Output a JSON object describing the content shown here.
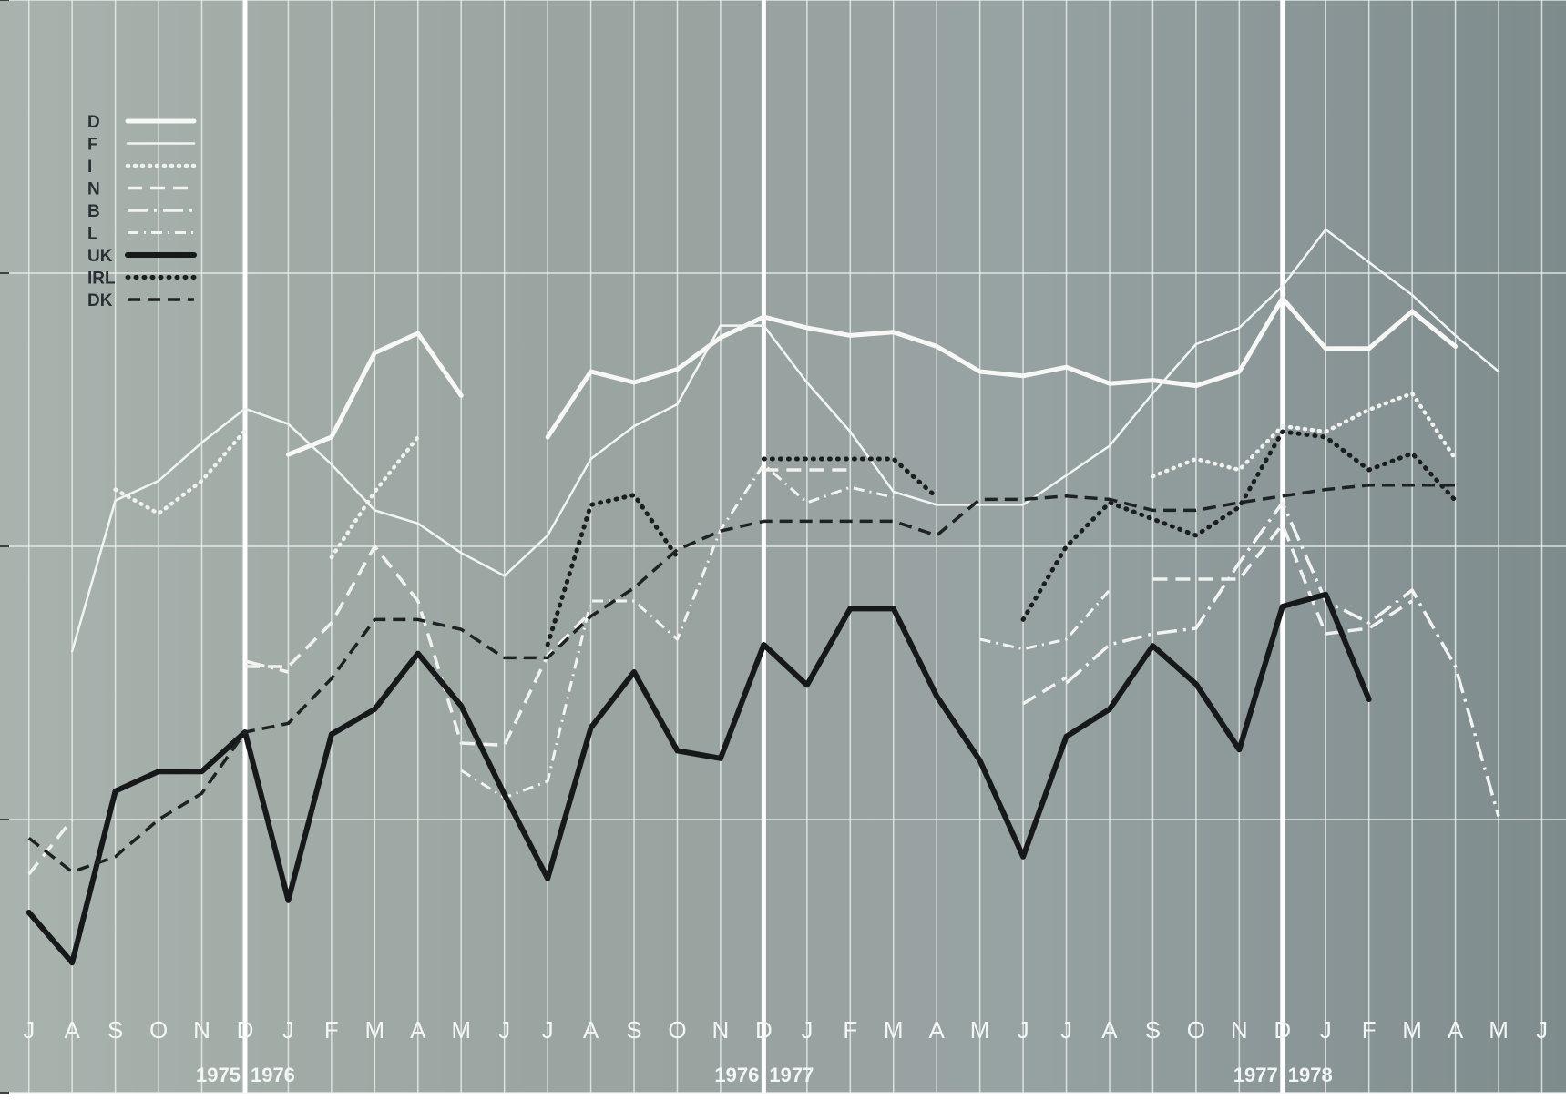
{
  "chart_data": {
    "type": "line",
    "title": "",
    "xlabel": "",
    "ylabel": "",
    "ylim": [
      0,
      100
    ],
    "grid": true,
    "legend_placement": "top-left",
    "months": [
      "J",
      "A",
      "S",
      "O",
      "N",
      "D",
      "J",
      "F",
      "M",
      "A",
      "M",
      "J",
      "J",
      "A",
      "S",
      "O",
      "N",
      "D",
      "J",
      "F",
      "M",
      "A",
      "M",
      "J",
      "J",
      "A",
      "S",
      "O",
      "N",
      "D",
      "J",
      "F",
      "M",
      "A",
      "M",
      "J"
    ],
    "year_labels": [
      {
        "text": "1975",
        "after_month": 5
      },
      {
        "text": "1976",
        "after_month": 5
      },
      {
        "text": "1976",
        "after_month": 17
      },
      {
        "text": "1977",
        "after_month": 17
      },
      {
        "text": "1977",
        "after_month": 29
      },
      {
        "text": "1978",
        "after_month": 29
      }
    ],
    "series": [
      {
        "name": "D",
        "style": "solid-thick",
        "values": [
          55.4,
          null,
          null,
          null,
          null,
          null,
          58.4,
          60.0,
          67.7,
          69.5,
          63.8,
          null,
          60.0,
          66.0,
          65.0,
          66.2,
          69.1,
          71.0,
          70.0,
          69.3,
          69.6,
          68.3,
          66.0,
          65.6,
          66.4,
          64.9,
          65.2,
          64.7,
          66.0,
          72.7,
          68.1,
          68.1,
          71.5,
          68.3,
          null,
          null
        ]
      },
      {
        "name": "F",
        "style": "solid-thin",
        "values": [
          null,
          40.4,
          54.2,
          56.0,
          59.5,
          62.6,
          61.2,
          57.5,
          53.3,
          52.1,
          49.4,
          47.3,
          51.0,
          58.0,
          61.0,
          63.0,
          70.2,
          70.2,
          65.0,
          60.5,
          55.0,
          53.8,
          53.8,
          53.8,
          56.5,
          59.2,
          64.0,
          68.5,
          70.0,
          73.8,
          79.0,
          76.0,
          73.0,
          69.3,
          66.0,
          null
        ]
      },
      {
        "name": "I",
        "style": "dotted-white",
        "values": [
          37.8,
          null,
          55.2,
          53.0,
          56.0,
          60.6,
          null,
          49.0,
          55.0,
          60.0,
          null,
          null,
          null,
          null,
          null,
          null,
          62.6,
          null,
          null,
          null,
          null,
          null,
          null,
          26.0,
          null,
          null,
          56.4,
          58.0,
          57.0,
          61.0,
          60.5,
          62.5,
          64.0,
          58.0,
          null,
          null
        ]
      },
      {
        "name": "N",
        "style": "dashed-white",
        "values": [
          20.0,
          25.0,
          null,
          null,
          null,
          39.0,
          39.0,
          43.0,
          50.0,
          45.0,
          32.0,
          31.8,
          40.0,
          44.0,
          null,
          null,
          null,
          57.0,
          57.0,
          57.0,
          null,
          null,
          null,
          35.6,
          38.0,
          null,
          47.0,
          47.0,
          47.0,
          52.0,
          42.0,
          42.5,
          45.0,
          null,
          null,
          null
        ]
      },
      {
        "name": "B",
        "style": "dashdot-white",
        "values": [
          null,
          null,
          28.5,
          null,
          null,
          39.5,
          38.5,
          null,
          null,
          45.0,
          null,
          null,
          null,
          null,
          null,
          null,
          null,
          57.5,
          null,
          null,
          null,
          null,
          null,
          null,
          37.5,
          41.0,
          42.0,
          42.5,
          48.5,
          54.0,
          45.0,
          43.0,
          46.0,
          39.0,
          25.3,
          null
        ]
      },
      {
        "name": "L",
        "style": "dotdash-white",
        "values": [
          null,
          null,
          null,
          null,
          null,
          null,
          null,
          null,
          51.5,
          null,
          29.5,
          27.0,
          28.5,
          45.0,
          45.0,
          41.5,
          51.5,
          57.5,
          54.0,
          55.4,
          54.5,
          null,
          41.5,
          40.6,
          41.5,
          46.0,
          null,
          null,
          null,
          null,
          null,
          null,
          null,
          null,
          null,
          null
        ]
      },
      {
        "name": "UK",
        "style": "solid-black",
        "values": [
          16.5,
          11.9,
          27.6,
          29.4,
          29.4,
          33.0,
          17.6,
          32.8,
          35.1,
          40.2,
          35.4,
          27.3,
          19.6,
          33.4,
          38.5,
          31.3,
          30.6,
          41.0,
          37.3,
          44.3,
          44.3,
          36.3,
          30.4,
          21.6,
          32.6,
          35.1,
          40.9,
          37.4,
          31.4,
          44.5,
          45.6,
          36.0,
          null,
          null,
          null,
          null
        ]
      },
      {
        "name": "IRL",
        "style": "dotted-black",
        "values": [
          null,
          null,
          null,
          null,
          null,
          null,
          null,
          null,
          null,
          null,
          null,
          null,
          41.0,
          53.8,
          54.7,
          49.0,
          null,
          58.0,
          58.0,
          58.0,
          58.0,
          54.5,
          null,
          43.3,
          50.0,
          54.0,
          52.5,
          51.0,
          53.6,
          60.5,
          60.0,
          57.0,
          58.5,
          54.2,
          null,
          null
        ]
      },
      {
        "name": "DK",
        "style": "dashed-black",
        "values": [
          23.3,
          20.2,
          21.6,
          25.0,
          27.4,
          33.0,
          33.8,
          37.9,
          43.3,
          43.3,
          42.4,
          39.8,
          39.8,
          43.6,
          46.2,
          49.7,
          51.4,
          52.3,
          52.3,
          52.3,
          52.3,
          51.0,
          54.3,
          54.3,
          54.6,
          54.3,
          53.3,
          53.3,
          54.0,
          54.6,
          55.2,
          55.6,
          55.6,
          55.6,
          null,
          null
        ]
      }
    ]
  }
}
